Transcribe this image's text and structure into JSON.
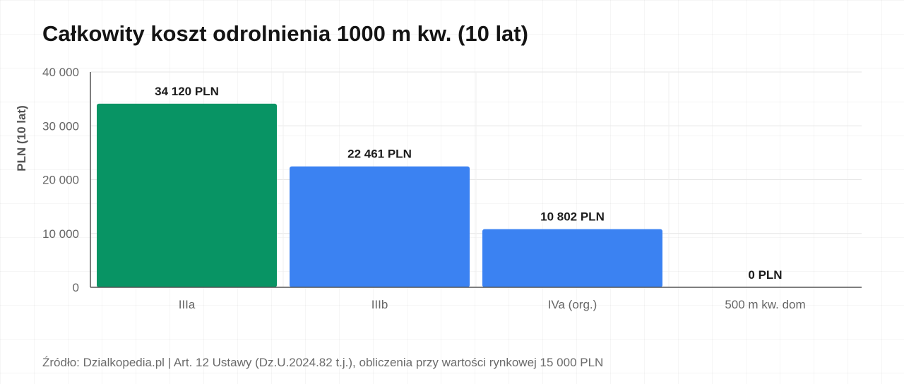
{
  "chart_data": {
    "type": "bar",
    "title": "Całkowity koszt odrolnienia 1000 m kw. (10 lat)",
    "xlabel": "",
    "ylabel": "PLN (10 lat)",
    "ylim": [
      0,
      40000
    ],
    "yticks": [
      0,
      10000,
      20000,
      30000,
      40000
    ],
    "ytick_labels": [
      "0",
      "10 000",
      "20 000",
      "30 000",
      "40 000"
    ],
    "categories": [
      "IIIa",
      "IIIb",
      "IVa (org.)",
      "500 m kw. dom"
    ],
    "values": [
      34120,
      22461,
      10802,
      0
    ],
    "value_labels": [
      "34 120 PLN",
      "22 461 PLN",
      "10 802 PLN",
      "0 PLN"
    ],
    "bar_colors": [
      "#089464",
      "#3b82f2",
      "#3b82f2",
      "#3b82f2"
    ],
    "grid": true,
    "legend": "none"
  },
  "footer": {
    "source": "Źródło: Dzialkopedia.pl | Art. 12 Ustawy (Dz.U.2024.82 t.j.), obliczenia przy wartości rynkowej 15 000 PLN"
  }
}
